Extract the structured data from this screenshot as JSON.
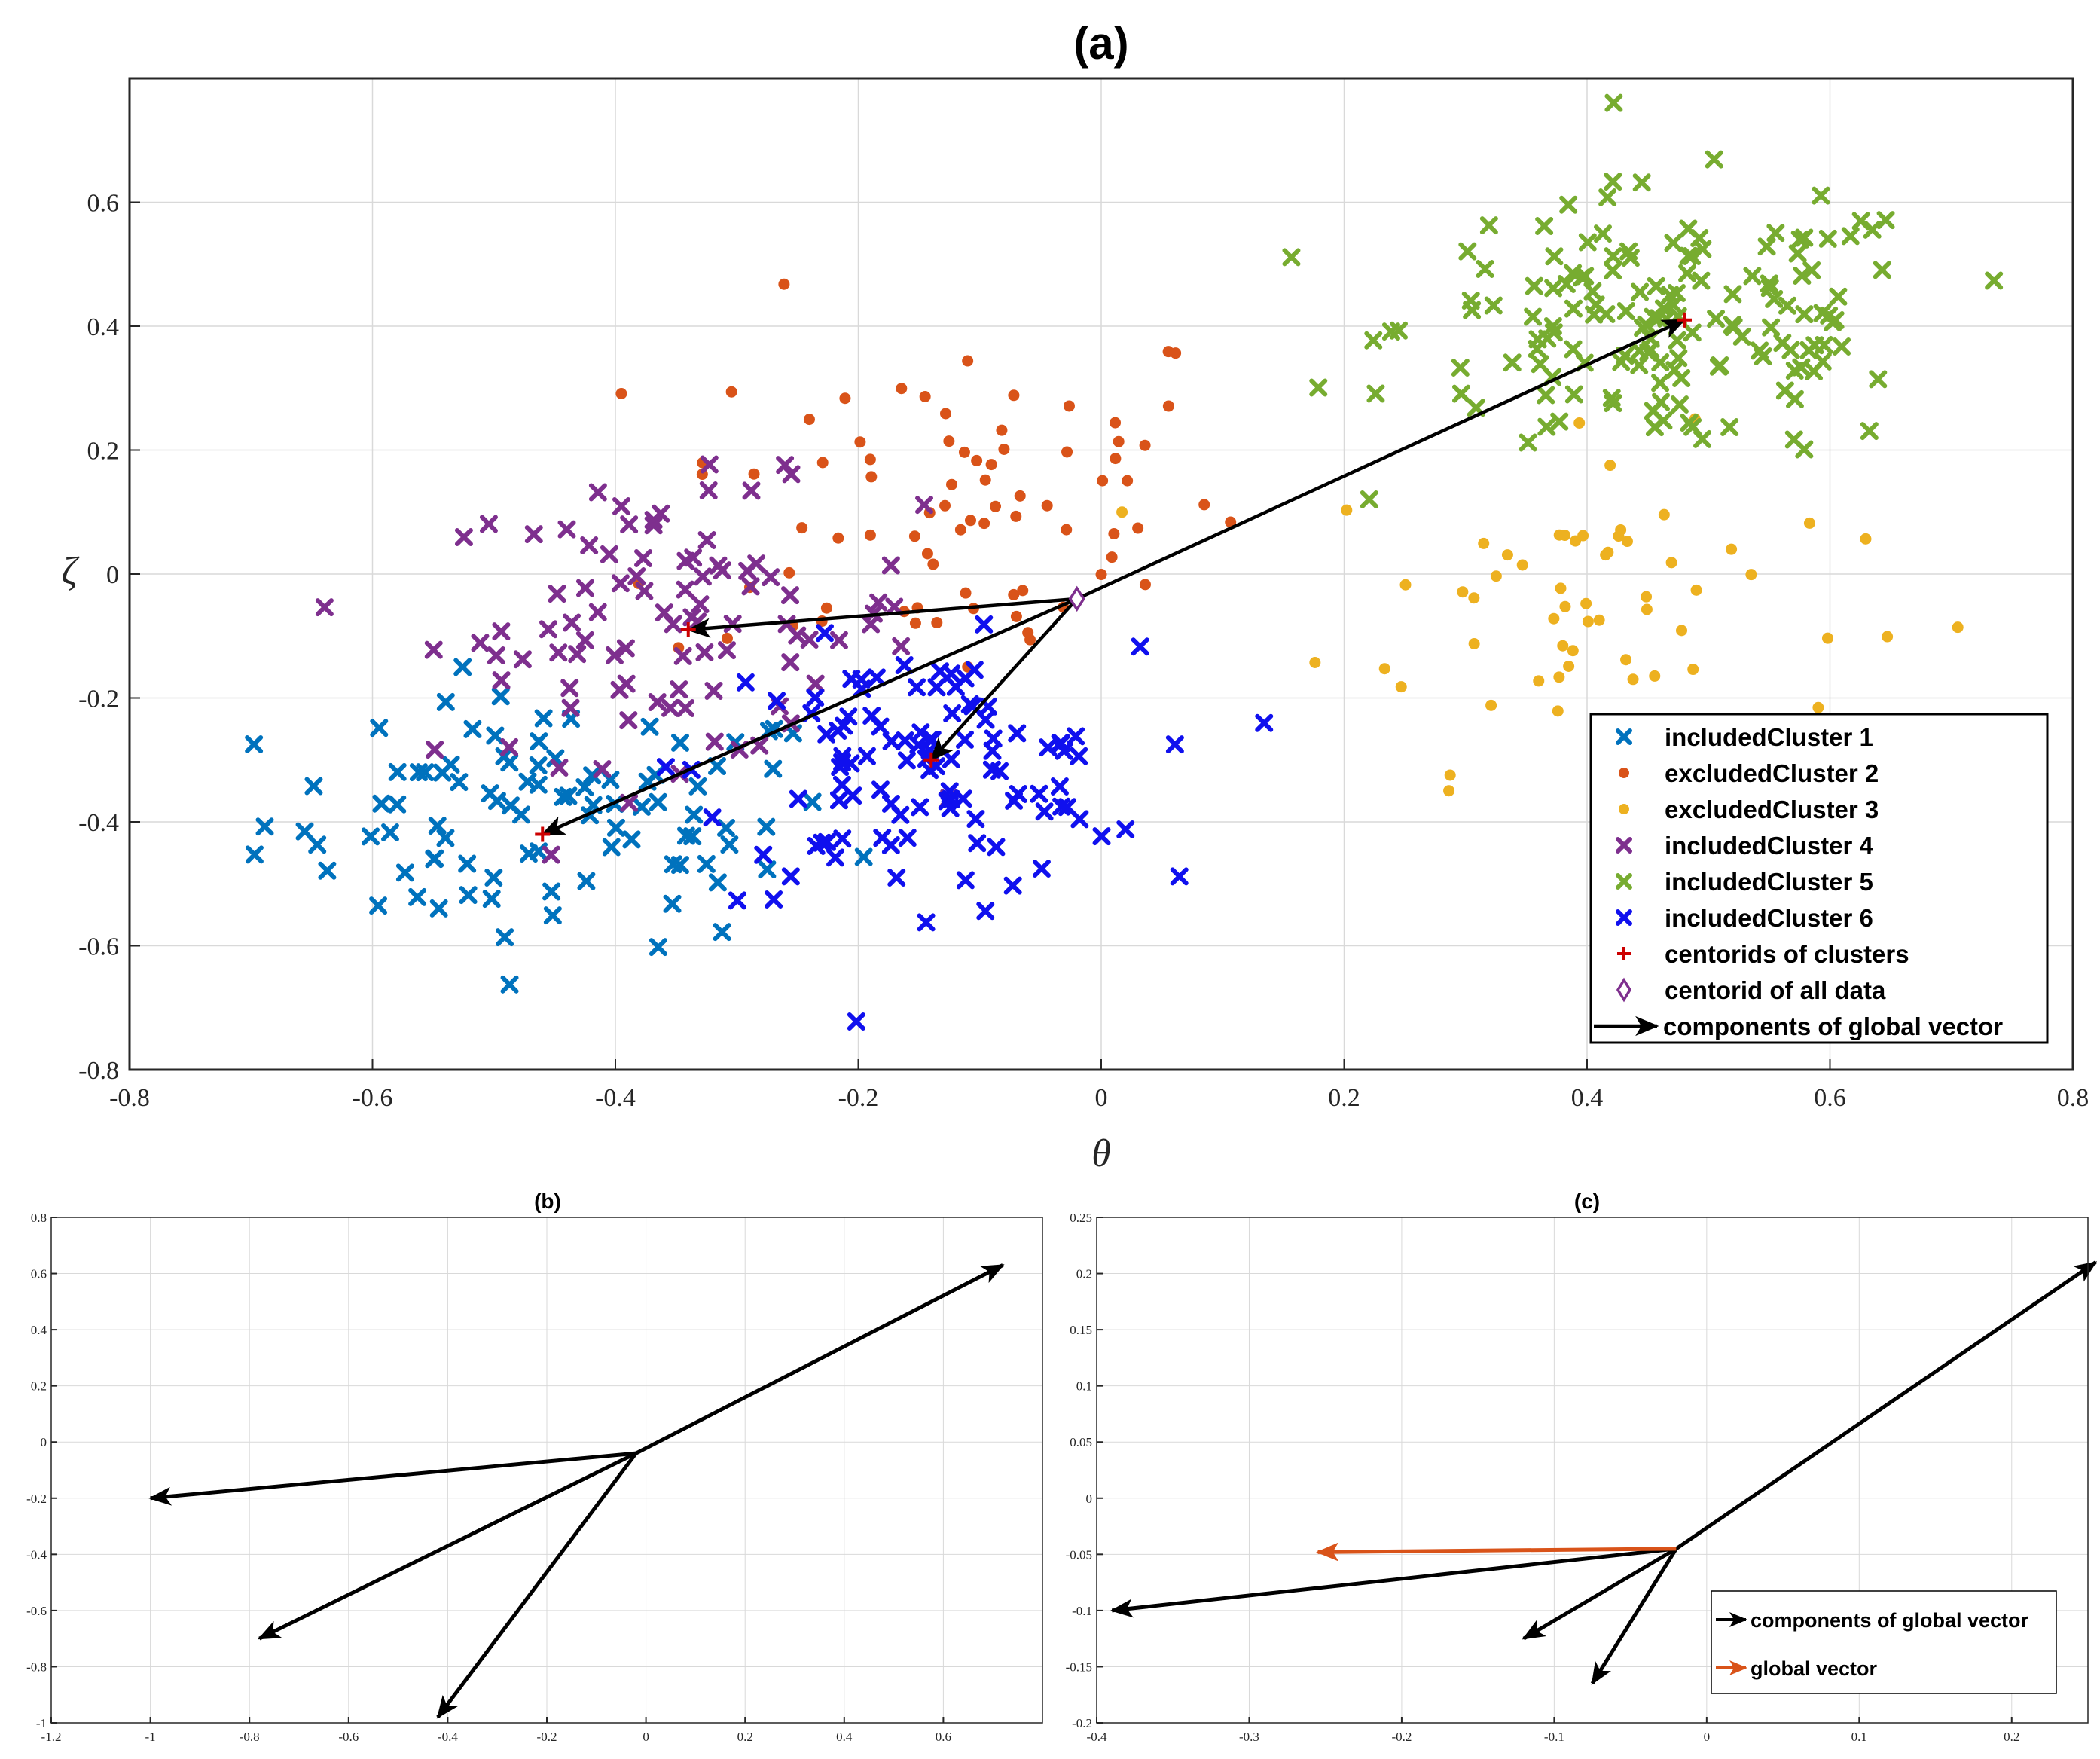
{
  "colors": {
    "cluster1": "#0072BD",
    "cluster2": "#D95319",
    "cluster3": "#EDB120",
    "cluster4": "#7E2F8E",
    "cluster5": "#77AC30",
    "cluster6": "#1010EE",
    "centroid": "#CC0000",
    "arrow": "#000000",
    "global": "#D95319"
  },
  "chart_data": [
    {
      "type": "scatter",
      "title": "(a)",
      "xlabel": "θ",
      "ylabel": "ζ",
      "xlim": [
        -0.8,
        0.8
      ],
      "ylim": [
        -0.8,
        0.8
      ],
      "xticks": [
        "-0.8",
        "-0.6",
        "-0.4",
        "-0.2",
        "0",
        "0.2",
        "0.4",
        "0.6",
        "0.8"
      ],
      "yticks": [
        "-0.8",
        "-0.6",
        "-0.4",
        "-0.2",
        "0",
        "0.2",
        "0.4",
        "0.6"
      ],
      "grid": true,
      "legend_position": "bottom-right",
      "series": [
        {
          "name": "includedCluster 1",
          "marker": "x",
          "colorKey": "cluster1",
          "center": [
            -0.45,
            -0.4
          ],
          "spread": [
            0.12,
            0.1
          ],
          "count": 95
        },
        {
          "name": "excludedCluster 2",
          "marker": "dot",
          "colorKey": "cluster2",
          "center": [
            -0.12,
            0.12
          ],
          "spread": [
            0.12,
            0.16
          ],
          "count": 80
        },
        {
          "name": "excludedCluster 3",
          "marker": "dot",
          "colorKey": "cluster3",
          "center": [
            0.4,
            -0.05
          ],
          "spread": [
            0.11,
            0.13
          ],
          "count": 62
        },
        {
          "name": "includedCluster 4",
          "marker": "x",
          "colorKey": "cluster4",
          "center": [
            -0.35,
            -0.08
          ],
          "spread": [
            0.1,
            0.11
          ],
          "count": 95
        },
        {
          "name": "includedCluster 5",
          "marker": "x",
          "colorKey": "cluster5",
          "center": [
            0.47,
            0.4
          ],
          "spread": [
            0.11,
            0.11
          ],
          "count": 155
        },
        {
          "name": "includedCluster 6",
          "marker": "x",
          "colorKey": "cluster6",
          "center": [
            -0.15,
            -0.32
          ],
          "spread": [
            0.09,
            0.1
          ],
          "count": 110
        },
        {
          "name": "centorids of clusters",
          "marker": "plus",
          "colorKey": "centroid",
          "points": [
            [
              -0.46,
              -0.42
            ],
            [
              -0.34,
              -0.09
            ],
            [
              -0.14,
              -0.3
            ],
            [
              0.48,
              0.41
            ]
          ]
        },
        {
          "name": "centorid of all data",
          "marker": "diamond",
          "colorKey": "cluster4",
          "points": [
            [
              -0.02,
              -0.04
            ]
          ]
        },
        {
          "name": "components of global vector",
          "marker": "arrow",
          "colorKey": "arrow",
          "arrows": [
            [
              -0.02,
              -0.04,
              -0.34,
              -0.09
            ],
            [
              -0.02,
              -0.04,
              -0.14,
              -0.3
            ],
            [
              -0.02,
              -0.04,
              -0.46,
              -0.42
            ],
            [
              -0.02,
              -0.04,
              0.48,
              0.41
            ]
          ]
        }
      ]
    },
    {
      "type": "line",
      "title": "(b)",
      "xlim": [
        -1.2,
        0.8
      ],
      "ylim": [
        -1,
        0.8
      ],
      "xticks": [
        "-1.2",
        "-1",
        "-0.8",
        "-0.6",
        "-0.4",
        "-0.2",
        "0",
        "0.2",
        "0.4",
        "0.6"
      ],
      "yticks": [
        "-1",
        "-0.8",
        "-0.6",
        "-0.4",
        "-0.2",
        "0",
        "0.2",
        "0.4",
        "0.6",
        "0.8"
      ],
      "grid": true,
      "arrows": [
        [
          -0.02,
          -0.04,
          0.72,
          0.63
        ],
        [
          -0.02,
          -0.04,
          -1.0,
          -0.2
        ],
        [
          -0.02,
          -0.04,
          -0.78,
          -0.7
        ],
        [
          -0.02,
          -0.04,
          -0.42,
          -0.98
        ]
      ]
    },
    {
      "type": "line",
      "title": "(c)",
      "xlim": [
        -0.4,
        0.25
      ],
      "ylim": [
        -0.2,
        0.25
      ],
      "xticks": [
        "-0.4",
        "-0.3",
        "-0.2",
        "-0.1",
        "0",
        "0.1",
        "0.2"
      ],
      "yticks": [
        "-0.2",
        "-0.15",
        "-0.1",
        "-0.05",
        "0",
        "0.05",
        "0.1",
        "0.15",
        "0.2",
        "0.25"
      ],
      "grid": true,
      "legend_position": "bottom-right",
      "legend": [
        "components of global vector",
        "global vector"
      ],
      "arrows": [
        [
          -0.02,
          -0.045,
          0.255,
          0.21
        ],
        [
          -0.02,
          -0.045,
          -0.39,
          -0.1
        ],
        [
          -0.02,
          -0.045,
          -0.12,
          -0.125
        ],
        [
          -0.02,
          -0.045,
          -0.075,
          -0.165
        ]
      ],
      "global_arrow": [
        -0.02,
        -0.045,
        -0.255,
        -0.048
      ]
    }
  ]
}
